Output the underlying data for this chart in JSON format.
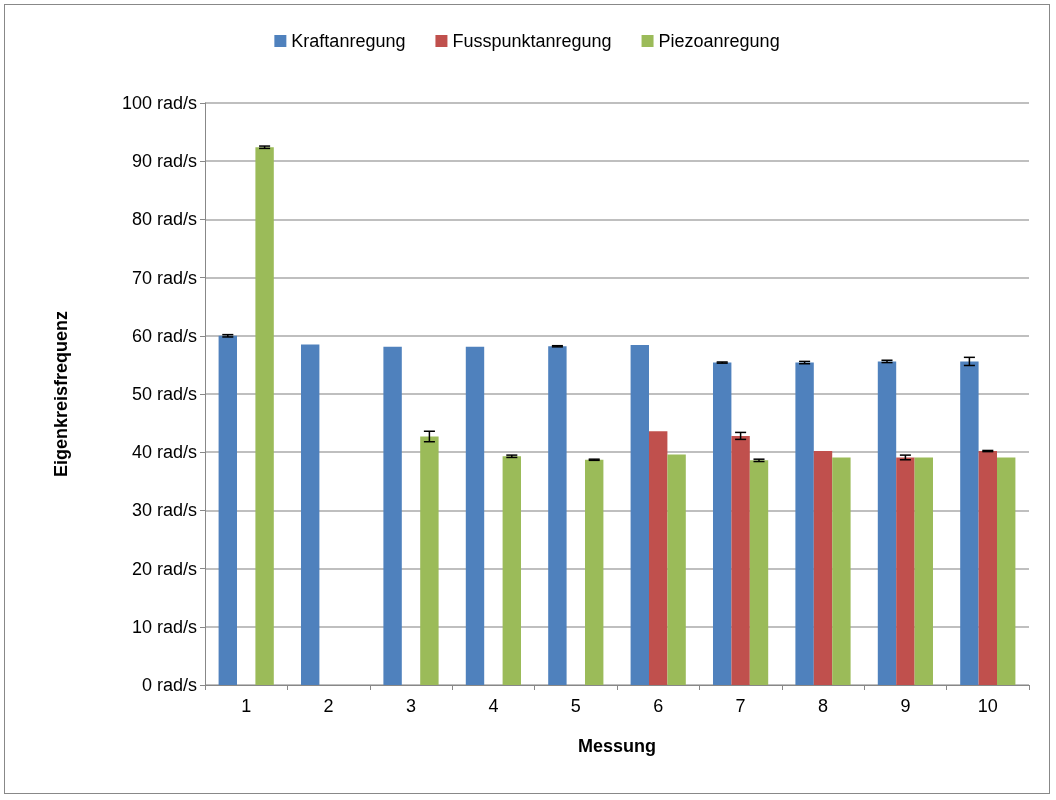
{
  "chart_data": {
    "type": "bar",
    "xlabel": "Messung",
    "ylabel": "Eigenkreisfrequenz",
    "categories": [
      "1",
      "2",
      "3",
      "4",
      "5",
      "6",
      "7",
      "8",
      "9",
      "10"
    ],
    "series": [
      {
        "name": "Kraftanregung",
        "color": "#4f81bd",
        "values": [
          60.0,
          58.5,
          58.1,
          58.1,
          58.2,
          58.4,
          55.4,
          55.4,
          55.6,
          55.6
        ],
        "errors": [
          0.2,
          null,
          null,
          null,
          0.1,
          null,
          0.1,
          0.2,
          0.2,
          0.7
        ]
      },
      {
        "name": "Fusspunktanregung",
        "color": "#c0504d",
        "values": [
          null,
          null,
          null,
          null,
          null,
          43.6,
          42.8,
          40.2,
          39.1,
          40.2
        ],
        "errors": [
          null,
          null,
          null,
          null,
          null,
          null,
          0.6,
          null,
          0.4,
          0.1
        ]
      },
      {
        "name": "Piezoanregung",
        "color": "#9bbb59",
        "values": [
          92.4,
          null,
          42.7,
          39.3,
          38.7,
          39.6,
          38.6,
          39.1,
          39.1,
          39.1
        ],
        "errors": [
          0.2,
          null,
          0.9,
          0.2,
          0.1,
          null,
          0.2,
          null,
          null,
          null
        ]
      }
    ],
    "ylim": [
      0,
      100
    ],
    "yticks": [
      {
        "value": 0,
        "label": "0 rad/s"
      },
      {
        "value": 10,
        "label": "10 rad/s"
      },
      {
        "value": 20,
        "label": "20 rad/s"
      },
      {
        "value": 30,
        "label": "30 rad/s"
      },
      {
        "value": 40,
        "label": "40 rad/s"
      },
      {
        "value": 50,
        "label": "50 rad/s"
      },
      {
        "value": 60,
        "label": "60 rad/s"
      },
      {
        "value": 70,
        "label": "70 rad/s"
      },
      {
        "value": 80,
        "label": "80 rad/s"
      },
      {
        "value": 90,
        "label": "90 rad/s"
      },
      {
        "value": 100,
        "label": "100 rad/s"
      }
    ],
    "grid": "y",
    "legend": "top"
  }
}
